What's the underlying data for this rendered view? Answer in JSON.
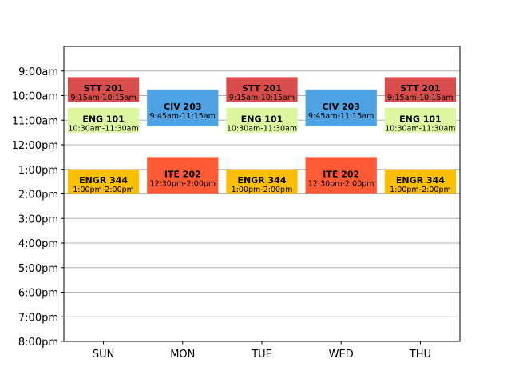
{
  "chart_data": {
    "type": "timetable",
    "days": [
      "SUN",
      "MON",
      "TUE",
      "WED",
      "THU"
    ],
    "hour_labels": [
      "9:00am",
      "10:00am",
      "11:00am",
      "12:00pm",
      "1:00pm",
      "2:00pm",
      "3:00pm",
      "4:00pm",
      "5:00pm",
      "6:00pm",
      "7:00pm",
      "8:00pm"
    ],
    "y_range_hours": [
      8,
      20
    ],
    "grid": true,
    "events": [
      {
        "day": "SUN",
        "course": "STT 201",
        "time": "9:15am-10:15am",
        "start": 9.25,
        "end": 10.25,
        "color": "#d94c4c"
      },
      {
        "day": "SUN",
        "course": "ENG 101",
        "time": "10:30am-11:30am",
        "start": 10.5,
        "end": 11.5,
        "color": "#ddf7a0"
      },
      {
        "day": "SUN",
        "course": "ENGR 344",
        "time": "1:00pm-2:00pm",
        "start": 13,
        "end": 14,
        "color": "#fbbf00"
      },
      {
        "day": "MON",
        "course": "CIV 203",
        "time": "9:45am-11:15am",
        "start": 9.75,
        "end": 11.25,
        "color": "#4fa3e4"
      },
      {
        "day": "MON",
        "course": "ITE 202",
        "time": "12:30pm-2:00pm",
        "start": 12.5,
        "end": 14,
        "color": "#ff5a36"
      },
      {
        "day": "TUE",
        "course": "STT 201",
        "time": "9:15am-10:15am",
        "start": 9.25,
        "end": 10.25,
        "color": "#d94c4c"
      },
      {
        "day": "TUE",
        "course": "ENG 101",
        "time": "10:30am-11:30am",
        "start": 10.5,
        "end": 11.5,
        "color": "#ddf7a0"
      },
      {
        "day": "TUE",
        "course": "ENGR 344",
        "time": "1:00pm-2:00pm",
        "start": 13,
        "end": 14,
        "color": "#fbbf00"
      },
      {
        "day": "WED",
        "course": "CIV 203",
        "time": "9:45am-11:15am",
        "start": 9.75,
        "end": 11.25,
        "color": "#4fa3e4"
      },
      {
        "day": "WED",
        "course": "ITE 202",
        "time": "12:30pm-2:00pm",
        "start": 12.5,
        "end": 14,
        "color": "#ff5a36"
      },
      {
        "day": "THU",
        "course": "STT 201",
        "time": "9:15am-10:15am",
        "start": 9.25,
        "end": 10.25,
        "color": "#d94c4c"
      },
      {
        "day": "THU",
        "course": "ENG 101",
        "time": "10:30am-11:30am",
        "start": 10.5,
        "end": 11.5,
        "color": "#ddf7a0"
      },
      {
        "day": "THU",
        "course": "ENGR 344",
        "time": "1:00pm-2:00pm",
        "start": 13,
        "end": 14,
        "color": "#fbbf00"
      }
    ]
  }
}
